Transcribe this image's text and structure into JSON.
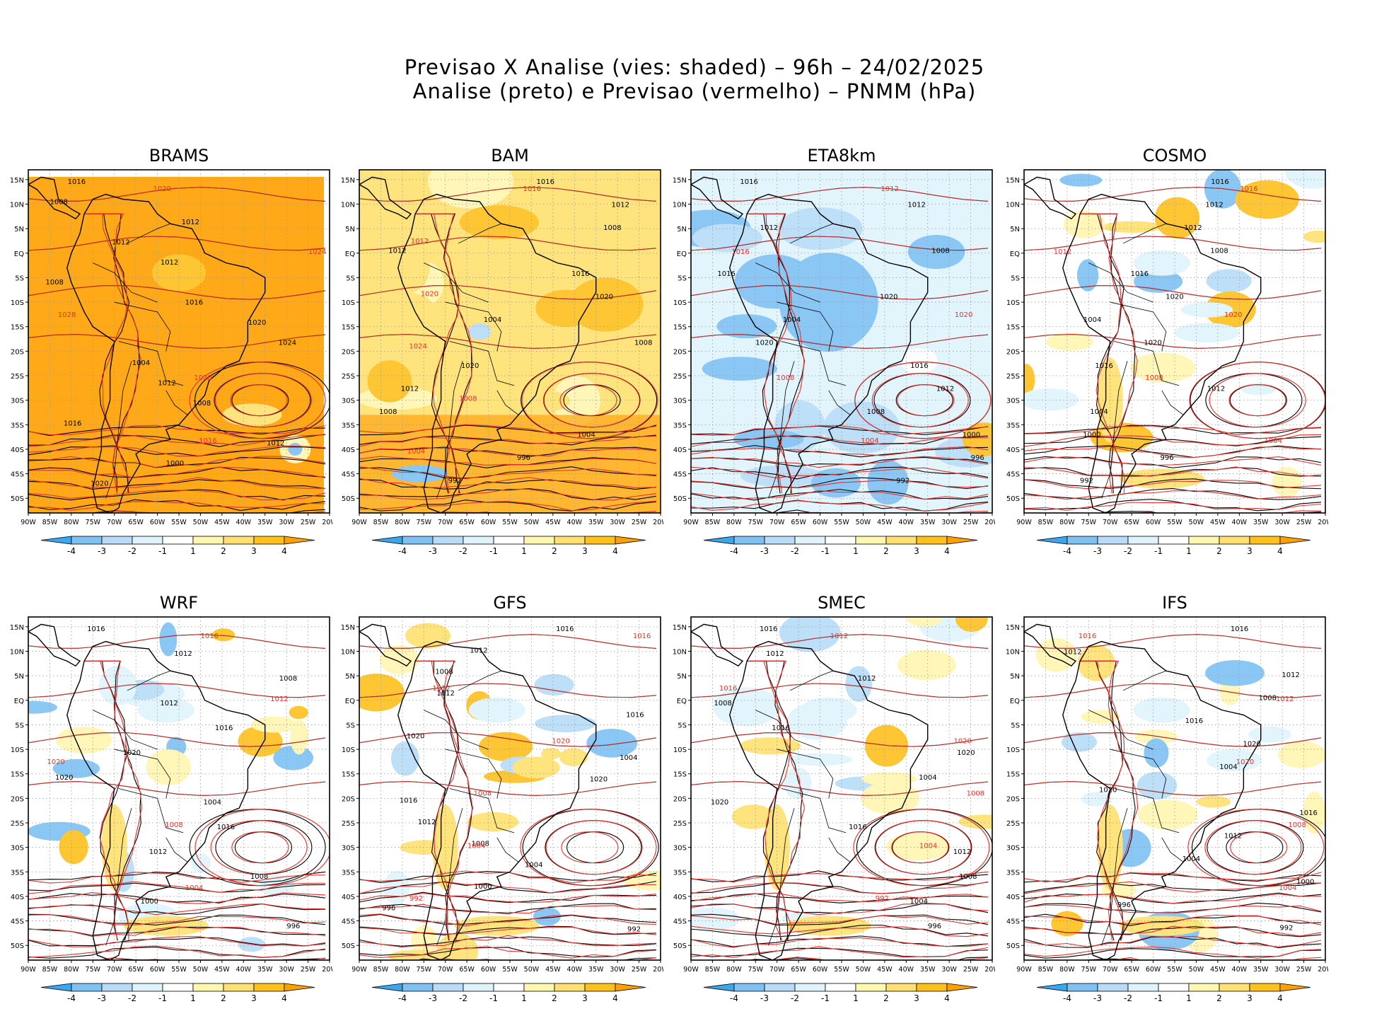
{
  "title_line1": "Previsao X Analise (vies: shaded) – 96h – 24/02/2025",
  "title_line2": "Analise (preto) e Previsao (vermelho) – PNMM (hPa)",
  "lat_labels": [
    "15N",
    "10N",
    "5N",
    "EQ",
    "5S",
    "10S",
    "15S",
    "20S",
    "25S",
    "30S",
    "35S",
    "40S",
    "45S",
    "50S"
  ],
  "lon_labels": [
    "90W",
    "85W",
    "80W",
    "75W",
    "70W",
    "65W",
    "60W",
    "55W",
    "50W",
    "45W",
    "40W",
    "35W",
    "30W",
    "25W",
    "20W"
  ],
  "colorbar": {
    "labels": [
      "-4",
      "-3",
      "-2",
      "-1",
      "1",
      "2",
      "3",
      "4"
    ],
    "colors": [
      "#3aa6ee",
      "#7ec2f4",
      "#b8dcf8",
      "#dff3fc",
      "#ffffff",
      "#fff6b0",
      "#ffe070",
      "#ffc01e",
      "#ffa000"
    ]
  },
  "colors": {
    "analysis": "#000000",
    "forecast": "#e8302b"
  },
  "panels": [
    {
      "name": "BRAMS",
      "bias": "warm-strong",
      "labels_black": [
        "1016",
        "1008",
        "1012",
        "1012",
        "1012",
        "1008",
        "1016",
        "1020",
        "1024",
        "1004",
        "1012",
        "1008",
        "1016",
        "1012",
        "1000",
        "1020"
      ],
      "labels_red": [
        "1020",
        "1024",
        "1028",
        "1020",
        "1016"
      ]
    },
    {
      "name": "BAM",
      "bias": "warm",
      "labels_black": [
        "1016",
        "1012",
        "1008",
        "1012",
        "1016",
        "1020",
        "1004",
        "1008",
        "1020",
        "1012",
        "1008",
        "1004",
        "996",
        "992"
      ],
      "labels_red": [
        "1016",
        "1012",
        "1020",
        "1024",
        "1008",
        "1004"
      ]
    },
    {
      "name": "ETA8km",
      "bias": "cool",
      "labels_black": [
        "1016",
        "1012",
        "1012",
        "1008",
        "1016",
        "1020",
        "1004",
        "1020",
        "1016",
        "1012",
        "1008",
        "1000",
        "996",
        "992"
      ],
      "labels_red": [
        "1012",
        "1016",
        "1020",
        "1008",
        "1004"
      ]
    },
    {
      "name": "COSMO",
      "bias": "mixed",
      "labels_black": [
        "1016",
        "1012",
        "1012",
        "1008",
        "1016",
        "1020",
        "1004",
        "1020",
        "1016",
        "1012",
        "1004",
        "1000",
        "996",
        "992"
      ],
      "labels_red": [
        "1016",
        "1012",
        "1020",
        "1008",
        "1004"
      ]
    },
    {
      "name": "WRF",
      "bias": "mixed",
      "labels_black": [
        "1016",
        "1012",
        "1008",
        "1012",
        "1016",
        "1020",
        "1020",
        "1004",
        "1016",
        "1012",
        "1008",
        "1000",
        "996"
      ],
      "labels_red": [
        "1016",
        "1012",
        "1020",
        "1008",
        "1004"
      ]
    },
    {
      "name": "GFS",
      "bias": "mixed",
      "labels_black": [
        "1016",
        "1012",
        "1008",
        "1012",
        "1016",
        "1020",
        "1004",
        "1020",
        "1016",
        "1012",
        "1008",
        "1004",
        "1000",
        "996",
        "992"
      ],
      "labels_red": [
        "1016",
        "1012",
        "1020",
        "1008",
        "1004",
        "992"
      ]
    },
    {
      "name": "SMEC",
      "bias": "mixed",
      "labels_black": [
        "1016",
        "1012",
        "1012",
        "1008",
        "1016",
        "1020",
        "1004",
        "1020",
        "1016",
        "1012",
        "1008",
        "1004",
        "996"
      ],
      "labels_red": [
        "1012",
        "1016",
        "1020",
        "1008",
        "1004",
        "992"
      ]
    },
    {
      "name": "IFS",
      "bias": "mixed",
      "labels_black": [
        "1016",
        "1012",
        "1012",
        "1008",
        "1016",
        "1020",
        "1004",
        "1020",
        "1016",
        "1012",
        "1004",
        "1000",
        "996",
        "992"
      ],
      "labels_red": [
        "1016",
        "1012",
        "1020",
        "1008",
        "1004"
      ]
    }
  ]
}
